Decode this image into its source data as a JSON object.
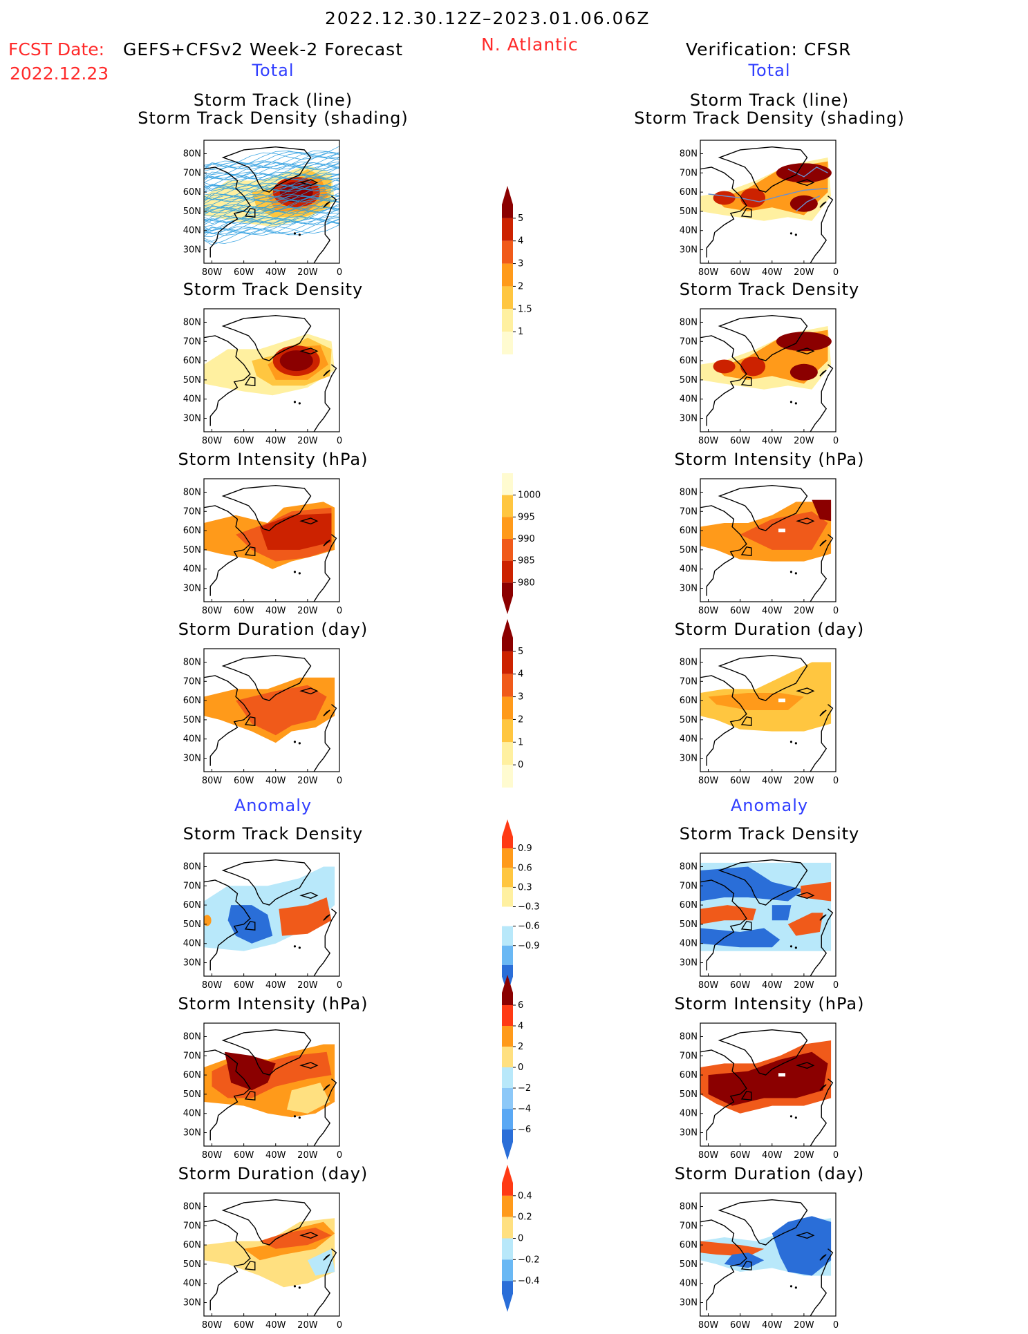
{
  "header": {
    "date_range": "2022.12.30.12Z–2023.01.06.06Z",
    "fcst_label": "FCST Date:",
    "model": "GEFS+CFSv2 Week-2 Forecast",
    "fcst_date": "2022.12.23",
    "region": "N. Atlantic",
    "verification": "Verification: CFSR"
  },
  "sections": {
    "total": "Total",
    "anomaly": "Anomaly"
  },
  "panel_titles": {
    "track_line": "Storm Track (line)",
    "track_shading": "Storm Track Density (shading)",
    "density": "Storm Track Density",
    "intensity": "Storm Intensity (hPa)",
    "duration": "Storm Duration (day)"
  },
  "axes": {
    "lat_ticks": [
      "80N",
      "70N",
      "60N",
      "50N",
      "40N",
      "30N"
    ],
    "lon_ticks": [
      "80W",
      "60W",
      "40W",
      "20W",
      "0"
    ]
  },
  "colorbars": {
    "density_total": {
      "labels": [
        "5",
        "4",
        "3",
        "2",
        "1.5",
        "1"
      ],
      "colors": [
        "#8b0000",
        "#cc2200",
        "#f05a1a",
        "#ff9a1a",
        "#ffc640",
        "#fff0a0",
        "#fffbd0"
      ]
    },
    "intensity_total": {
      "labels": [
        "1000",
        "995",
        "990",
        "985",
        "980"
      ],
      "colors": [
        "#fffbd0",
        "#ffc640",
        "#ff9a1a",
        "#f05a1a",
        "#cc2200",
        "#8b0000"
      ]
    },
    "duration_total": {
      "labels": [
        "5",
        "4",
        "3",
        "2",
        "1",
        "0"
      ],
      "colors": [
        "#8b0000",
        "#cc2200",
        "#f05a1a",
        "#ff9a1a",
        "#ffc640",
        "#fff0a0",
        "#fffbd0"
      ]
    },
    "density_anom": {
      "labels": [
        "0.9",
        "0.6",
        "0.3",
        "−0.3",
        "−0.6",
        "−0.9"
      ],
      "colors": [
        "#ff3a14",
        "#ff9a1a",
        "#ffc640",
        "#fff0a0",
        "#ffffff",
        "#b8e8fa",
        "#6ab8f4",
        "#2a6ed8"
      ]
    },
    "intensity_anom": {
      "labels": [
        "6",
        "4",
        "2",
        "0",
        "−2",
        "−4",
        "−6"
      ],
      "colors": [
        "#8b0000",
        "#ff3a14",
        "#ff9a1a",
        "#ffe080",
        "#b8e8fa",
        "#8cc8f8",
        "#5aa8f4",
        "#2a6ed8"
      ]
    },
    "duration_anom": {
      "labels": [
        "0.4",
        "0.2",
        "0",
        "−0.2",
        "−0.4"
      ],
      "colors": [
        "#ff3a14",
        "#ff9a1a",
        "#ffe080",
        "#b8e8fa",
        "#6ab8f4",
        "#2a6ed8"
      ]
    }
  },
  "colors": {
    "title_red": "#ff2a2a",
    "section_blue": "#2f3dff",
    "track_lines": "#2a9de0"
  }
}
